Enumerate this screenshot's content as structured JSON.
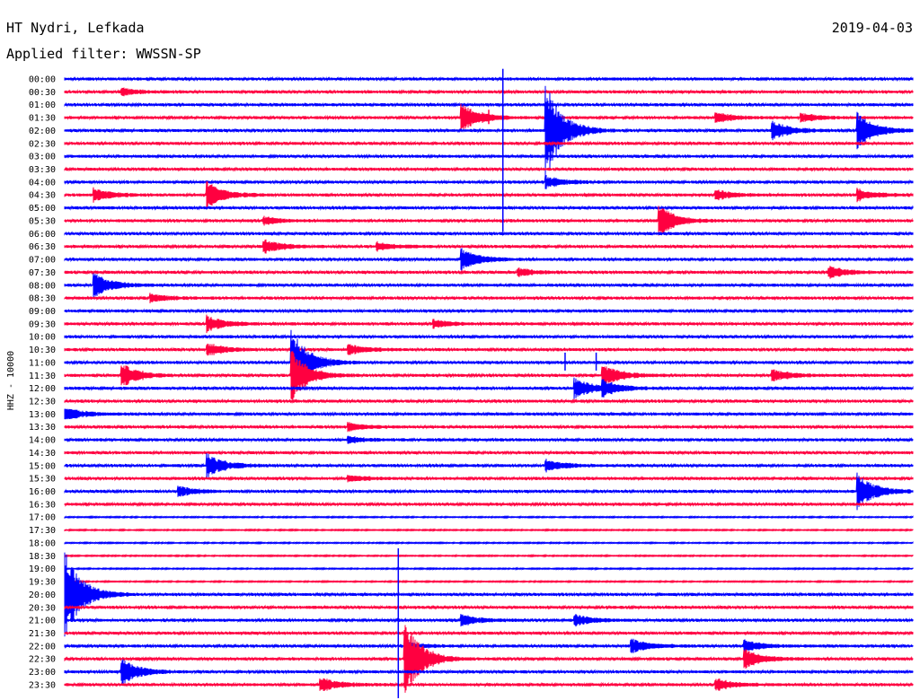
{
  "header": {
    "station": "HT Nydri, Lefkada",
    "filter": "Applied filter: WWSSN-SP",
    "date": "2019-04-03"
  },
  "chart_data": {
    "type": "line",
    "title": "HT Nydri, Lefkada",
    "subtitle": "Applied filter: WWSSN-SP",
    "ylabel": "HHZ - 10000",
    "row_labels": [
      "00:00",
      "00:30",
      "01:00",
      "01:30",
      "02:00",
      "02:30",
      "03:00",
      "03:30",
      "04:00",
      "04:30",
      "05:00",
      "05:30",
      "06:00",
      "06:30",
      "07:00",
      "07:30",
      "08:00",
      "08:30",
      "09:00",
      "09:30",
      "10:00",
      "10:30",
      "11:00",
      "11:30",
      "12:00",
      "12:30",
      "13:00",
      "13:30",
      "14:00",
      "14:30",
      "15:00",
      "15:30",
      "16:00",
      "16:30",
      "17:00",
      "17:30",
      "18:00",
      "18:30",
      "19:00",
      "19:30",
      "20:00",
      "20:30",
      "21:00",
      "21:30",
      "22:00",
      "22:30",
      "23:00",
      "23:30"
    ],
    "row_minutes": 30,
    "colors": {
      "even_rows": "#0000ff",
      "odd_rows": "#ff0040"
    },
    "events": [
      {
        "row": 1,
        "minute": 2,
        "amp": 4
      },
      {
        "row": 3,
        "minute": 14,
        "amp": 18
      },
      {
        "row": 3,
        "minute": 26,
        "amp": 5
      },
      {
        "row": 3,
        "minute": 23,
        "amp": 6
      },
      {
        "row": 4,
        "minute": 17,
        "amp": 55
      },
      {
        "row": 4,
        "minute": 25,
        "amp": 12
      },
      {
        "row": 4,
        "minute": 28,
        "amp": 22
      },
      {
        "row": 8,
        "minute": 17,
        "amp": 7
      },
      {
        "row": 9,
        "minute": 1,
        "amp": 8
      },
      {
        "row": 9,
        "minute": 5,
        "amp": 16
      },
      {
        "row": 9,
        "minute": 23,
        "amp": 6
      },
      {
        "row": 9,
        "minute": 28,
        "amp": 7
      },
      {
        "row": 11,
        "minute": 7,
        "amp": 5
      },
      {
        "row": 11,
        "minute": 21,
        "amp": 18
      },
      {
        "row": 13,
        "minute": 7,
        "amp": 9
      },
      {
        "row": 13,
        "minute": 11,
        "amp": 5
      },
      {
        "row": 14,
        "minute": 14,
        "amp": 13
      },
      {
        "row": 15,
        "minute": 16,
        "amp": 5
      },
      {
        "row": 15,
        "minute": 27,
        "amp": 7
      },
      {
        "row": 16,
        "minute": 1,
        "amp": 15
      },
      {
        "row": 17,
        "minute": 3,
        "amp": 5
      },
      {
        "row": 19,
        "minute": 5,
        "amp": 10
      },
      {
        "row": 19,
        "minute": 13,
        "amp": 5
      },
      {
        "row": 21,
        "minute": 5,
        "amp": 8
      },
      {
        "row": 21,
        "minute": 10,
        "amp": 7
      },
      {
        "row": 22,
        "minute": 8,
        "amp": 40
      },
      {
        "row": 23,
        "minute": 2,
        "amp": 14
      },
      {
        "row": 23,
        "minute": 8,
        "amp": 30
      },
      {
        "row": 23,
        "minute": 19,
        "amp": 15
      },
      {
        "row": 23,
        "minute": 25,
        "amp": 7
      },
      {
        "row": 24,
        "minute": 18,
        "amp": 12
      },
      {
        "row": 24,
        "minute": 19,
        "amp": 9
      },
      {
        "row": 26,
        "minute": 0,
        "amp": 8
      },
      {
        "row": 27,
        "minute": 10,
        "amp": 5
      },
      {
        "row": 28,
        "minute": 10,
        "amp": 4
      },
      {
        "row": 30,
        "minute": 5,
        "amp": 14
      },
      {
        "row": 30,
        "minute": 17,
        "amp": 7
      },
      {
        "row": 31,
        "minute": 10,
        "amp": 4
      },
      {
        "row": 32,
        "minute": 4,
        "amp": 6
      },
      {
        "row": 32,
        "minute": 28,
        "amp": 22
      },
      {
        "row": 40,
        "minute": 0,
        "amp": 50
      },
      {
        "row": 42,
        "minute": 14,
        "amp": 7
      },
      {
        "row": 42,
        "minute": 18,
        "amp": 7
      },
      {
        "row": 44,
        "minute": 12,
        "amp": 5
      },
      {
        "row": 44,
        "minute": 20,
        "amp": 9
      },
      {
        "row": 44,
        "minute": 24,
        "amp": 7
      },
      {
        "row": 45,
        "minute": 12,
        "amp": 45
      },
      {
        "row": 45,
        "minute": 24,
        "amp": 12
      },
      {
        "row": 46,
        "minute": 2,
        "amp": 16
      },
      {
        "row": 47,
        "minute": 9,
        "amp": 9
      },
      {
        "row": 47,
        "minute": 23,
        "amp": 7
      }
    ],
    "spikes": [
      {
        "row": 3,
        "minute": 15,
        "height": 16
      },
      {
        "row": 4,
        "minute": 15.5,
        "height": 125
      },
      {
        "row": 10,
        "minute": 15.5,
        "height": 60
      },
      {
        "row": 22,
        "minute": 18.8,
        "height": 20
      },
      {
        "row": 22,
        "minute": 17.7,
        "height": 20
      },
      {
        "row": 46,
        "minute": 11.8,
        "height": 250
      }
    ]
  }
}
